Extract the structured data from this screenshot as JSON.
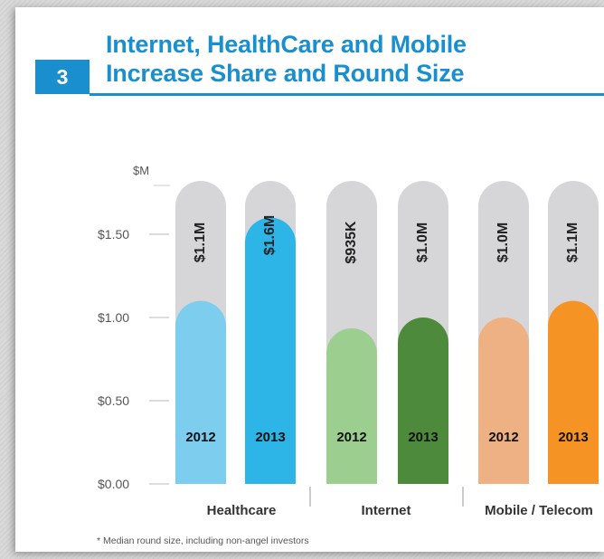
{
  "header": {
    "number": "3",
    "title_line1": "Internet, HealthCare and Mobile",
    "title_line2": "Increase Share and Round Size"
  },
  "footnote": "* Median round size, including non-angel investors",
  "colors": {
    "accent": "#1a8fd0",
    "track": "#d6d6d8",
    "healthcare_2012": "#7ccdee",
    "healthcare_2013": "#2cb5e6",
    "internet_2012": "#9ccf8f",
    "internet_2013": "#4e8a3c",
    "mobile_2012": "#eeb184",
    "mobile_2013": "#f59324"
  },
  "chart_data": {
    "type": "bar",
    "ylabel": "$M",
    "ylim": [
      0,
      1.75
    ],
    "yticks": [
      0,
      0.5,
      1.0,
      1.5
    ],
    "ytick_labels": [
      "$0.00",
      "$0.50",
      "$1.00",
      "$1.50"
    ],
    "categories": [
      "Healthcare",
      "Internet",
      "Mobile / Telecom"
    ],
    "series": [
      {
        "name": "2012",
        "values": [
          1.1,
          0.935,
          1.0
        ],
        "labels": [
          "$1.1M",
          "$935K",
          "$1.0M"
        ]
      },
      {
        "name": "2013",
        "values": [
          1.6,
          1.0,
          1.1
        ],
        "labels": [
          "$1.6M",
          "$1.0M",
          "$1.1M"
        ]
      }
    ],
    "colors": [
      [
        "#7ccdee",
        "#2cb5e6"
      ],
      [
        "#9ccf8f",
        "#4e8a3c"
      ],
      [
        "#eeb184",
        "#f59324"
      ]
    ]
  }
}
